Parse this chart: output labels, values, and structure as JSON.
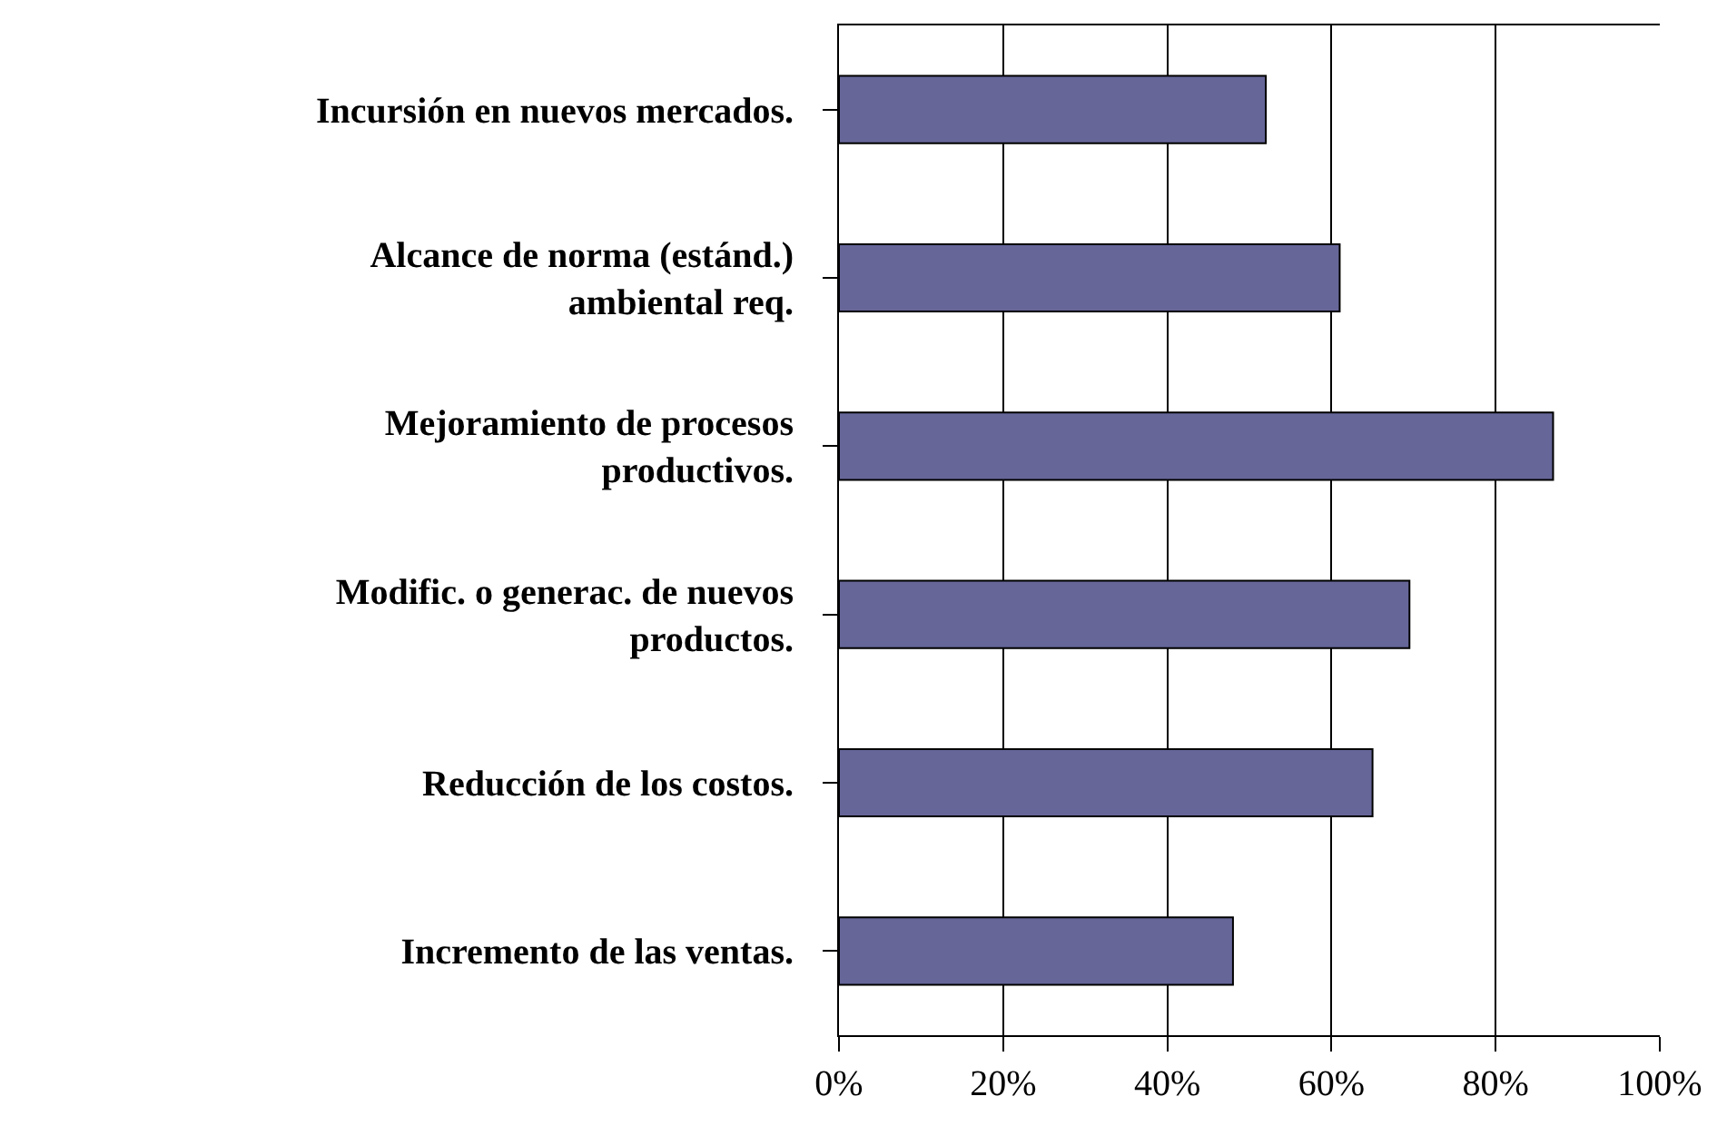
{
  "chart_data": {
    "type": "bar",
    "orientation": "horizontal",
    "categories": [
      "Incursión en nuevos mercados.",
      "Alcance de norma (estánd.)\nambiental req.",
      "Mejoramiento de procesos\nproductivos.",
      "Modific. o generac. de nuevos\nproductos.",
      "Reducción de los costos.",
      "Incremento de las ventas."
    ],
    "values": [
      52,
      61,
      87,
      69.5,
      65,
      48
    ],
    "color": "#666699",
    "xlim": [
      0,
      100
    ],
    "xticks": [
      {
        "value": 0,
        "label": "0%"
      },
      {
        "value": 20,
        "label": "20%"
      },
      {
        "value": 40,
        "label": "40%"
      },
      {
        "value": 60,
        "label": "60%"
      },
      {
        "value": 80,
        "label": "80%"
      },
      {
        "value": 100,
        "label": "100%"
      }
    ],
    "grid": "x",
    "legend": false
  }
}
